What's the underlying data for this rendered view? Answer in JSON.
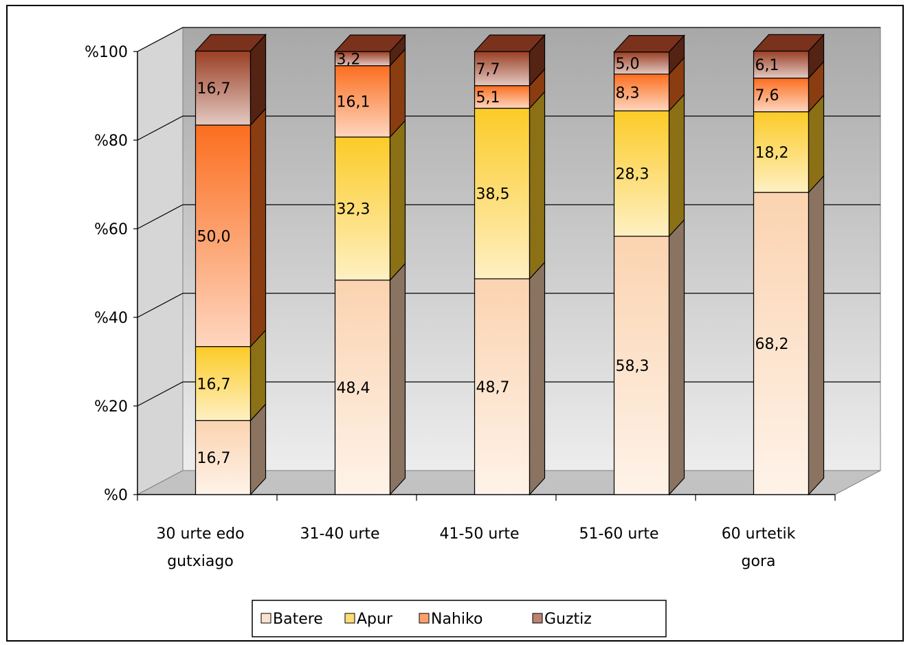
{
  "chart_data": {
    "type": "bar",
    "stacked": true,
    "three_d": true,
    "categories": [
      "30 urte edo gutxiago",
      "31-40 urte",
      "41-50 urte",
      "51-60 urte",
      "60 urtetik gora"
    ],
    "category_lines": [
      [
        "30 urte edo",
        "gutxiago"
      ],
      [
        "31-40 urte"
      ],
      [
        "41-50 urte"
      ],
      [
        "51-60 urte"
      ],
      [
        "60 urtetik",
        "gora"
      ]
    ],
    "series": [
      {
        "name": "Batere",
        "values": [
          16.7,
          48.4,
          48.7,
          58.3,
          68.2
        ],
        "labels": [
          "16,7",
          "48,4",
          "48,7",
          "58,3",
          "68,2"
        ],
        "color": "#FBD3B0"
      },
      {
        "name": "Apur",
        "values": [
          16.7,
          32.3,
          38.5,
          28.3,
          18.2
        ],
        "labels": [
          "16,7",
          "32,3",
          "38,5",
          "28,3",
          "18,2"
        ],
        "color": "#FCCB27"
      },
      {
        "name": "Nahiko",
        "values": [
          50.0,
          16.1,
          5.1,
          8.3,
          7.6
        ],
        "labels": [
          "50,0",
          "16,1",
          "5,1",
          "8,3",
          "7,6"
        ],
        "color": "#FB6E1F"
      },
      {
        "name": "Guztiz",
        "values": [
          16.7,
          3.2,
          7.7,
          5.0,
          6.1
        ],
        "labels": [
          "16,7",
          "3,2",
          "7,7",
          "5,0",
          "6,1"
        ],
        "color": "#9A3F24"
      }
    ],
    "yticks": [
      "%0",
      "%20",
      "%40",
      "%60",
      "%80",
      "%100"
    ],
    "ylim": [
      0,
      100
    ],
    "grid": true,
    "legend_position": "bottom",
    "title": "",
    "xlabel": "",
    "ylabel": ""
  }
}
